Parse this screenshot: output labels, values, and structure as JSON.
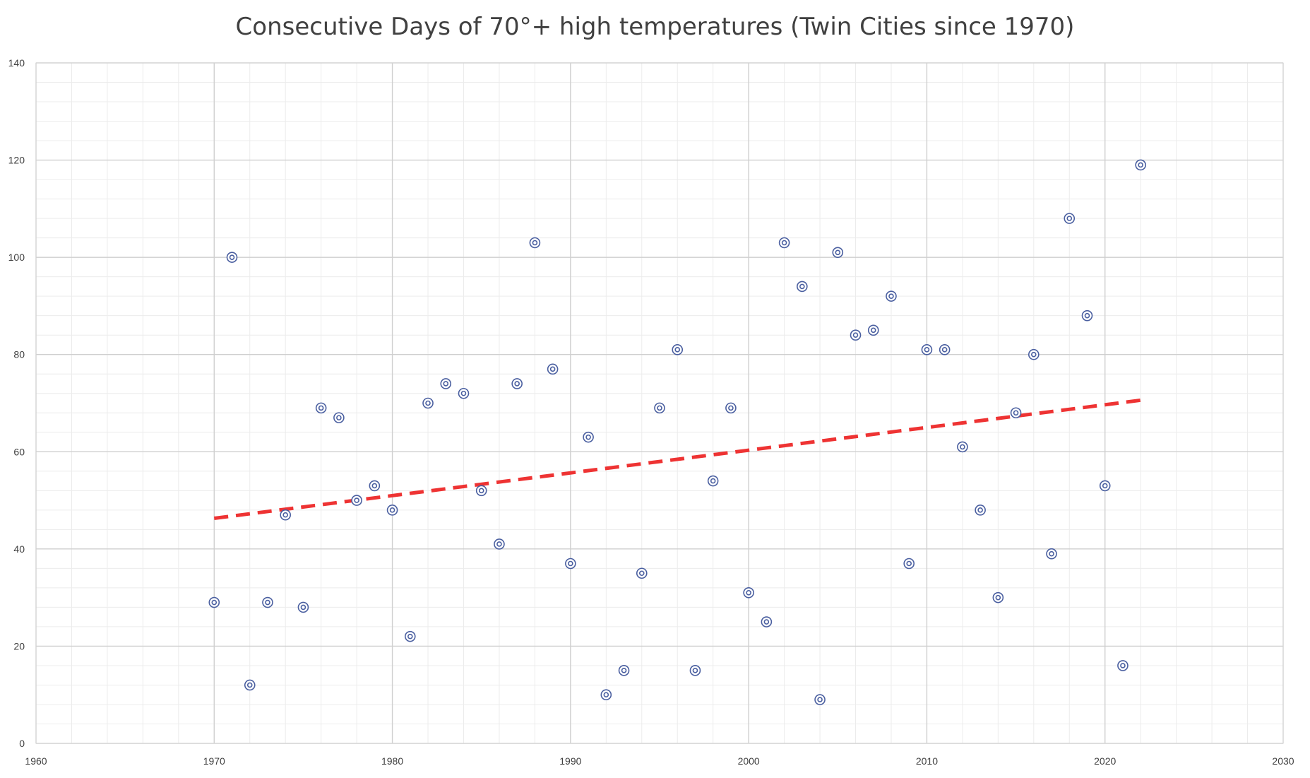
{
  "chart_data": {
    "type": "scatter",
    "title": "Consecutive Days of 70°+ high temperatures (Twin Cities since 1970)",
    "xlabel": "",
    "ylabel": "",
    "xlim": [
      1960,
      2030
    ],
    "ylim": [
      0,
      140
    ],
    "x_ticks": [
      1960,
      1970,
      1980,
      1990,
      2000,
      2010,
      2020,
      2030
    ],
    "y_ticks": [
      0,
      20,
      40,
      60,
      80,
      100,
      120,
      140
    ],
    "grid": true,
    "legend": "none",
    "marker": "double-circle",
    "marker_color": "#4a5fa0",
    "trendline": {
      "type": "linear",
      "style": "dashed",
      "color": "#ee3333",
      "start": [
        1970,
        46.3
      ],
      "end": [
        2022,
        70.6
      ]
    },
    "points": [
      {
        "x": 1970,
        "y": 29
      },
      {
        "x": 1971,
        "y": 100
      },
      {
        "x": 1972,
        "y": 12
      },
      {
        "x": 1973,
        "y": 29
      },
      {
        "x": 1974,
        "y": 47
      },
      {
        "x": 1975,
        "y": 28
      },
      {
        "x": 1976,
        "y": 69
      },
      {
        "x": 1977,
        "y": 67
      },
      {
        "x": 1978,
        "y": 50
      },
      {
        "x": 1979,
        "y": 53
      },
      {
        "x": 1980,
        "y": 48
      },
      {
        "x": 1981,
        "y": 22
      },
      {
        "x": 1982,
        "y": 70
      },
      {
        "x": 1983,
        "y": 74
      },
      {
        "x": 1984,
        "y": 72
      },
      {
        "x": 1985,
        "y": 52
      },
      {
        "x": 1986,
        "y": 41
      },
      {
        "x": 1987,
        "y": 74
      },
      {
        "x": 1988,
        "y": 103
      },
      {
        "x": 1989,
        "y": 77
      },
      {
        "x": 1990,
        "y": 37
      },
      {
        "x": 1991,
        "y": 63
      },
      {
        "x": 1992,
        "y": 10
      },
      {
        "x": 1993,
        "y": 15
      },
      {
        "x": 1994,
        "y": 35
      },
      {
        "x": 1995,
        "y": 69
      },
      {
        "x": 1996,
        "y": 81
      },
      {
        "x": 1997,
        "y": 15
      },
      {
        "x": 1998,
        "y": 54
      },
      {
        "x": 1999,
        "y": 69
      },
      {
        "x": 2000,
        "y": 31
      },
      {
        "x": 2001,
        "y": 25
      },
      {
        "x": 2002,
        "y": 103
      },
      {
        "x": 2003,
        "y": 94
      },
      {
        "x": 2004,
        "y": 9
      },
      {
        "x": 2005,
        "y": 101
      },
      {
        "x": 2006,
        "y": 84
      },
      {
        "x": 2007,
        "y": 85
      },
      {
        "x": 2008,
        "y": 92
      },
      {
        "x": 2009,
        "y": 37
      },
      {
        "x": 2010,
        "y": 81
      },
      {
        "x": 2011,
        "y": 81
      },
      {
        "x": 2012,
        "y": 61
      },
      {
        "x": 2013,
        "y": 48
      },
      {
        "x": 2014,
        "y": 30
      },
      {
        "x": 2015,
        "y": 68
      },
      {
        "x": 2016,
        "y": 80
      },
      {
        "x": 2017,
        "y": 39
      },
      {
        "x": 2018,
        "y": 108
      },
      {
        "x": 2019,
        "y": 88
      },
      {
        "x": 2020,
        "y": 53
      },
      {
        "x": 2021,
        "y": 16
      },
      {
        "x": 2022,
        "y": 119
      }
    ]
  }
}
